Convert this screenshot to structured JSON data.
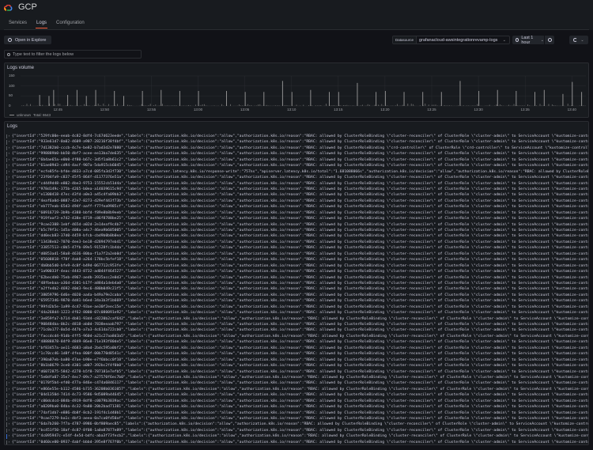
{
  "app": {
    "title": "GCP",
    "icon": "gcp-cloud-logo"
  },
  "tabs": [
    {
      "label": "Services",
      "active": false
    },
    {
      "label": "Logs",
      "active": true
    },
    {
      "label": "Configuration",
      "active": false
    }
  ],
  "toolbar": {
    "open_in_explore_label": "Open in Explore",
    "datasource_label": "Datasource",
    "datasource_value": "grafanacloud-awsintegrationrevamp-logs",
    "time_range": "Last 1 hour",
    "icons": {
      "explore": "compass-icon",
      "time": "clock-icon",
      "zoom_out": "zoom-out-icon",
      "refresh": "refresh-icon",
      "dropdown": "chevron-down-icon"
    }
  },
  "filter": {
    "placeholder": "Type text to filter the logs below",
    "value": ""
  },
  "volume": {
    "title": "Logs volume",
    "legend_series": "unknown",
    "legend_total": "Total: 8643"
  },
  "chart_data": {
    "type": "bar",
    "title": "Logs volume",
    "xlabel": "",
    "ylabel": "",
    "ylim": [
      0,
      150
    ],
    "yticks": [
      0,
      50,
      100,
      150
    ],
    "xticks": [
      "12:45",
      "12:50",
      "12:55",
      "13:00",
      "13:05",
      "13:10",
      "13:15",
      "13:20",
      "13:25",
      "13:30",
      "13:35",
      "13:40"
    ],
    "grid": true,
    "legend_position": "bottom-left",
    "series": [
      {
        "name": "unknown",
        "total": 8643,
        "color": "#8e8e8e",
        "peaks": [
          {
            "x": "12:43",
            "y": 55
          },
          {
            "x": "12:44",
            "y": 50
          },
          {
            "x": "12:44.5",
            "y": 80
          },
          {
            "x": "12:46",
            "y": 55
          },
          {
            "x": "12:47",
            "y": 80
          },
          {
            "x": "12:48",
            "y": 50
          },
          {
            "x": "12:49",
            "y": 80
          },
          {
            "x": "12:51",
            "y": 75
          },
          {
            "x": "12:52",
            "y": 50
          },
          {
            "x": "12:54",
            "y": 75
          },
          {
            "x": "12:56",
            "y": 80
          },
          {
            "x": "12:58",
            "y": 75
          },
          {
            "x": "13:00",
            "y": 75
          },
          {
            "x": "13:03",
            "y": 75
          },
          {
            "x": "13:05",
            "y": 70
          },
          {
            "x": "13:07",
            "y": 70
          },
          {
            "x": "13:09",
            "y": 125
          },
          {
            "x": "13:10",
            "y": 70
          },
          {
            "x": "13:12",
            "y": 80
          },
          {
            "x": "13:14",
            "y": 70
          },
          {
            "x": "13:15",
            "y": 70
          },
          {
            "x": "13:17",
            "y": 115
          },
          {
            "x": "13:19",
            "y": 70
          },
          {
            "x": "13:20",
            "y": 75
          },
          {
            "x": "13:22",
            "y": 70
          },
          {
            "x": "13:24",
            "y": 70
          },
          {
            "x": "13:26",
            "y": 70
          },
          {
            "x": "13:28",
            "y": 125
          },
          {
            "x": "13:30",
            "y": 75
          },
          {
            "x": "13:32",
            "y": 80
          },
          {
            "x": "13:34",
            "y": 75
          },
          {
            "x": "13:36",
            "y": 70
          },
          {
            "x": "13:37",
            "y": 80
          },
          {
            "x": "13:39",
            "y": 60
          },
          {
            "x": "13:40",
            "y": 120
          },
          {
            "x": "13:41",
            "y": 70
          }
        ]
      }
    ]
  },
  "logs": {
    "title": "Logs",
    "rows": [
      {
        "id": "529fc00e-eeab-4c82-8df4-7c67d623eede",
        "variant": "a"
      },
      {
        "id": "933e61d7-0a02-4609-a907-28216f38f4bf",
        "variant": "a"
      },
      {
        "id": "7d1382b0-cccb-4c7e-be82-b7ad3d2e7080",
        "variant": "c"
      },
      {
        "id": "998889b0-bb50-4bf7-acee-ee13ba7de635",
        "variant": "a"
      },
      {
        "id": "6b4ae65a-e0b0-4f80-b67c-3d5f1a8b61c2",
        "variant": "a"
      },
      {
        "id": "61ae09d3-cd94-4acf-907a-5da915cb6045",
        "variant": "a"
      },
      {
        "id": "ecfe85fe-bfde-4833-a7cd-085fa3d3f730",
        "variant": "b"
      },
      {
        "id": "23f04fa9-c837-45f5-864f-d1177376e51a",
        "variant": "a"
      },
      {
        "id": "cd449d48-e802-4be3-9753-15552cb51d4a",
        "variant": "a"
      },
      {
        "id": "978d149c-375b-4265-b0ea-a14039615c94",
        "variant": "a"
      },
      {
        "id": "e1300418-47ec-43fd-a0e3-a45c4fa09bb3",
        "variant": "a"
      },
      {
        "id": "4eaf6a0d-0887-42e7-8273-d29ef443f73b",
        "variant": "a"
      },
      {
        "id": "eb777eab-65d3-494f-aaff-f77fea9985cf",
        "variant": "a"
      },
      {
        "id": "60916719-3b9b-4388-bbfd-f89e8b8b9eeb",
        "variant": "a"
      },
      {
        "id": "919faaf3-e742-438e-8719-c86f8788be25",
        "variant": "a"
      },
      {
        "id": "9cae2308-1ebf-465d-a02d-2e14eaf9c4b7",
        "variant": "a"
      },
      {
        "id": "b5c79f3c-1d5a-408a-a4c7-46ea9b605005",
        "variant": "a"
      },
      {
        "id": "dd0ecb83-37d0-4459-bfcb-cbd9b0b0b0ea",
        "variant": "a"
      },
      {
        "id": "13438eb2-7070-4ee3-be18-d2894797eb41",
        "variant": "a"
      },
      {
        "id": "33857513-c0b5-47fb-89e5-91528fc1b4da",
        "variant": "a"
      },
      {
        "id": "d0853ad1-58a8-4636-80ba-f1a7f2a2eb0d",
        "variant": "a"
      },
      {
        "id": "05608818-f78f-4ab8-a264-178bc5bfef18",
        "variant": "a"
      },
      {
        "id": "4b0bb5d0-bfe9-4c0f-b49d-067712c953fe",
        "variant": "a"
      },
      {
        "id": "1a90033f-4eac-4443-8732-ad044f464527",
        "variant": "a"
      },
      {
        "id": "62becdb0-75eb-4967-aedb-3935acc2e0d3",
        "variant": "a"
      },
      {
        "id": "48fbebaa-a36d-4301-b17f-a884a1deb4a0",
        "variant": "a"
      },
      {
        "id": "a2ffe4b2-4692-40d3-9ec6-480b049c21f5",
        "variant": "a"
      },
      {
        "id": "38059796-6d6e-4020-aa4a-b49a79e2caba",
        "variant": "a"
      },
      {
        "id": "65957346-9870-4d41-b6ed-34a1b3f1b669",
        "variant": "a"
      },
      {
        "id": "99fd2b5e-1a99-4c47-93ae-ae30f2eec15e",
        "variant": "a"
      },
      {
        "id": "44a268d4-1223-4f62-8000-07c080091e92",
        "variant": "a"
      },
      {
        "id": "3e859fa7-b714-4b81-93d4-c8220b2caf642",
        "variant": "a"
      },
      {
        "id": "908484ba-0b2c-4818-ab0d-7838eeaab797",
        "variant": "a"
      },
      {
        "id": "71c0a177-0a5d-447b-a7a3-4c614a722cb0",
        "variant": "a"
      },
      {
        "id": "faccdcd4-91db-4ff5-960d-a21c27aa8d3a5",
        "variant": "a"
      },
      {
        "id": "48888878-84f9-4849-86e8-71e193f80de5",
        "variant": "a"
      },
      {
        "id": "bf83457a-ae11-4683-a8ad-2bdc595a0bf2",
        "variant": "a"
      },
      {
        "id": "1c70cc46-1d8f-4fea-800f-00b770d8541c",
        "variant": "a"
      },
      {
        "id": "390a07eb-ba80-47ae-b90e-e7f6bbcc0f10",
        "variant": "a"
      },
      {
        "id": "8b1b0679-3ce0-4301-a007-392bc2f4f0b0",
        "variant": "a"
      },
      {
        "id": "d6072875-5842-4278-b5f8-787181e7efb5",
        "variant": "a"
      },
      {
        "id": "5e0dfa07-35e7-4ec7-09c7-a27570f6ec7b0",
        "variant": "a"
      },
      {
        "id": "0170f5b4-efd0-477a-846e-c474a6846117",
        "variant": "a"
      },
      {
        "id": "e866e55e-b112-4586-b735-36208b0361057",
        "variant": "a"
      },
      {
        "id": "04d1350d-7414-4c73-9586-9d5089a44645",
        "variant": "a"
      },
      {
        "id": "c00dcdcd-084b-4919-8df8-c0079b3039ac",
        "variant": "a"
      },
      {
        "id": "a0209ba0-84ba-4c32-9a80-20b2bad71381",
        "variant": "a"
      },
      {
        "id": "74af1db7-e886-4b8f-8cb2-191f4c1d40b1",
        "variant": "a"
      },
      {
        "id": "9cae7279-ba1c-4bf3-aeea-0a7ca0fd50af",
        "variant": "a"
      },
      {
        "id": "6da7b260-7f7a-4787-8986-0bf809aec85",
        "variant": "a"
      },
      {
        "id": "bc451f50-18af-4c87-8f08-1a0a87877e89",
        "variant": "a"
      },
      {
        "id": "4c095947c-e54f-4e5d-bdfc-aba3f73fecb2",
        "variant": "a",
        "selected": true
      },
      {
        "id": "0d60ce00-0937-4abf-bbbd-395e8f767f0b",
        "variant": "a"
      },
      {
        "id": "ac28b2e2-c427-4c45-917b-b8012618bdb0",
        "variant": "a"
      }
    ],
    "text": {
      "prefix_key": "{\"insertId\":\"",
      "labels_a": "\",\"labels\":{\"authorization.k8s.io/decision\":\"allow\",\"authorization.k8s.io/reason\":\"RBAC: allowed by ClusterRoleBinding \\\"cluster-reconciler\\\" of ClusterRole \\\"cluster-admin\\\" to ServiceAccount \\\"kustomize-controller/flux-sy",
      "labels_b": "\",\"labels\":{\"apiserver.latency.k8s.io/response-write\":\"757ns\",\"apiserver.latency.k8s.io/total\":\"1.681088066s\",\"authorization.k8s.io/decision\":\"allow\",\"authorization.k8s.io/reason\":\"RBAC: allowed by ClusterRoleBinding \\\"syst",
      "labels_c": "\",\"labels\":{\"authorization.k8s.io/decision\":\"allow\",\"authorization.k8s.io/reason\":\"RBAC: allowed by ClusterRoleBinding \\\"crd-controller\\\" of ClusterRole \\\"crd-controller\\\" to ServiceAccount \\\"kustomize-controller/flux-system"
    }
  }
}
